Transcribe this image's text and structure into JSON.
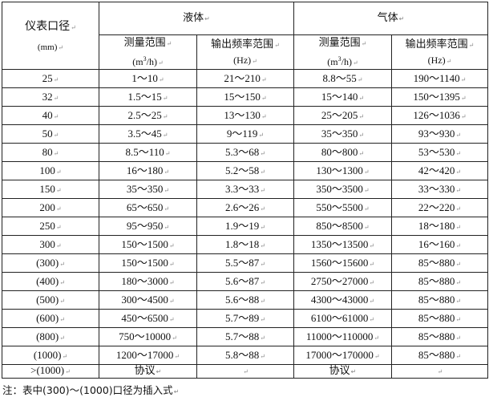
{
  "header": {
    "diameter_label": "仪表口径",
    "diameter_unit": "(mm)",
    "liquid": "液体",
    "gas": "气体",
    "measure_range": "测量范围",
    "measure_unit_pre": "(m",
    "measure_unit_sup": "3",
    "measure_unit_post": "/h)",
    "freq_range": "输出频率范围",
    "freq_unit": "(Hz)"
  },
  "rows": [
    [
      "25",
      "1～10",
      "21～210",
      "8.8～55",
      "190～1140"
    ],
    [
      "32",
      "1.5～15",
      "15～150",
      "15～140",
      "150～1395"
    ],
    [
      "40",
      "2.5～25",
      "13～130",
      "25～205",
      "126～1036"
    ],
    [
      "50",
      "3.5～45",
      "9～119",
      "35～350",
      "93～930"
    ],
    [
      "80",
      "8.5～110",
      "5.3～68",
      "80～800",
      "53～530"
    ],
    [
      "100",
      "16～180",
      "5.2～58",
      "130～1300",
      "42～420"
    ],
    [
      "150",
      "35～350",
      "3.3～33",
      "350～3500",
      "33～330"
    ],
    [
      "200",
      "65～650",
      "2.6～26",
      "550～5500",
      "22～220"
    ],
    [
      "250",
      "95～950",
      "1.9～19",
      "850～8500",
      "18～180"
    ],
    [
      "300",
      "150～1500",
      "1.8～18",
      "1350～13500",
      "16～160"
    ],
    [
      "(300)",
      "150～1500",
      "5.5～87",
      "1560～15600",
      "85～880"
    ],
    [
      "(400)",
      "180～3000",
      "5.6～87",
      "2750～27000",
      "85～880"
    ],
    [
      "(500)",
      "300～4500",
      "5.6～88",
      "4300～43000",
      "85～880"
    ],
    [
      "(600)",
      "450～6500",
      "5.7～89",
      "6100～61000",
      "85～880"
    ],
    [
      "(800)",
      "750～10000",
      "5.7～88",
      "11000～110000",
      "85～880"
    ],
    [
      "(1000)",
      "1200～17000",
      "5.8～88",
      "17000～170000",
      "85～880"
    ]
  ],
  "last_row": [
    ">(1000)",
    "协议",
    "",
    "协议",
    ""
  ],
  "note": "注：表中(300)～(1000)口径为插入式"
}
